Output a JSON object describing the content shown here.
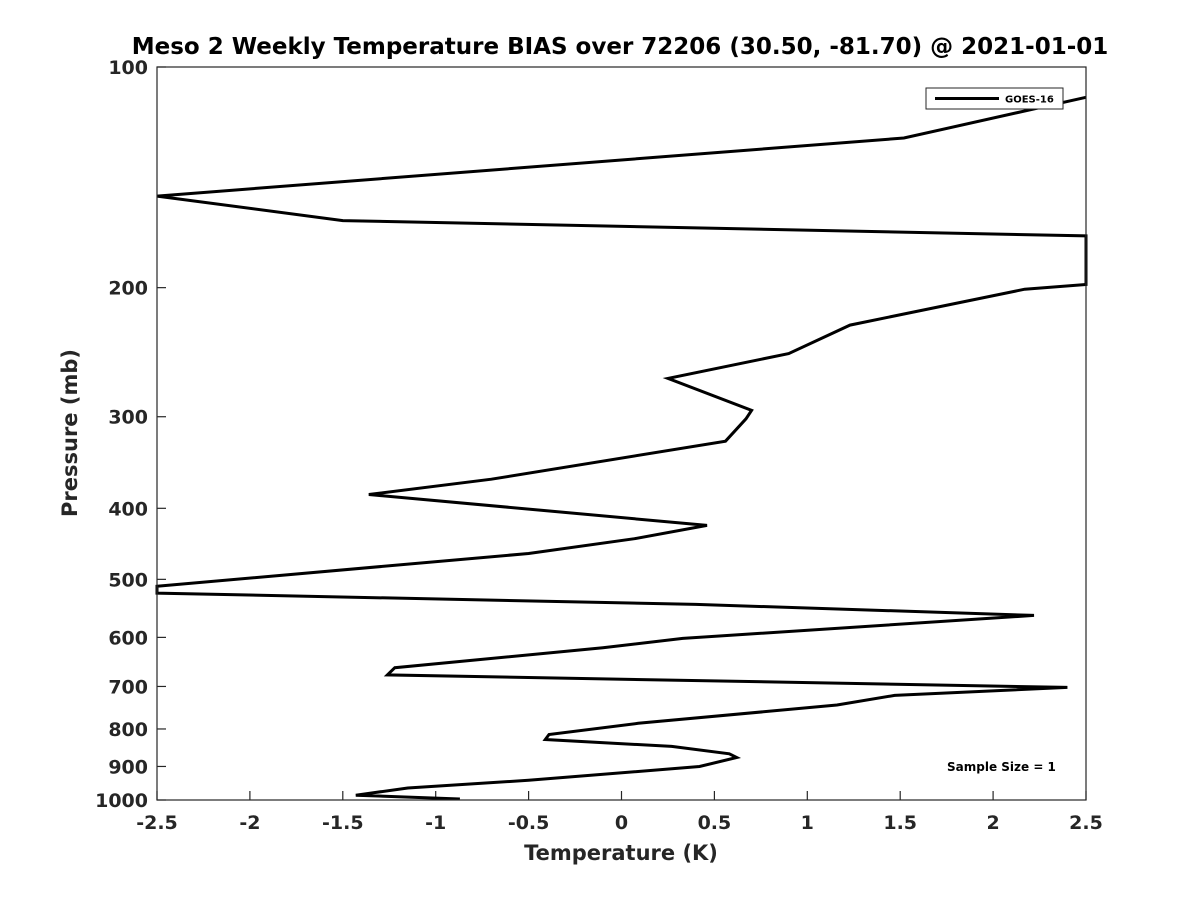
{
  "chart_data": {
    "type": "line",
    "title": "Meso 2 Weekly Temperature BIAS over 72206 (30.50, -81.70) @ 2021-01-01",
    "xlabel": "Temperature (K)",
    "ylabel": "Pressure (mb)",
    "xlim": [
      -2.5,
      2.5
    ],
    "ylim": [
      1000,
      100
    ],
    "yscale": "log",
    "y_reversed": true,
    "x_ticks": [
      -2.5,
      -2,
      -1.5,
      -1,
      -0.5,
      0,
      0.5,
      1,
      1.5,
      2,
      2.5
    ],
    "x_tick_labels": [
      "-2.5",
      "-2",
      "-1.5",
      "-1",
      "-0.5",
      "0",
      "0.5",
      "1",
      "1.5",
      "2",
      "2.5"
    ],
    "y_ticks": [
      100,
      200,
      300,
      400,
      500,
      600,
      700,
      800,
      900,
      1000
    ],
    "y_tick_labels": [
      "100",
      "200",
      "300",
      "400",
      "500",
      "600",
      "700",
      "800",
      "900",
      "1000"
    ],
    "grid": false,
    "legend_position": "top-right",
    "series": [
      {
        "name": "GOES-16",
        "color": "#000000",
        "x": [
          2.5,
          1.52,
          -2.5,
          -1.5,
          2.5,
          2.5,
          2.17,
          1.23,
          0.9,
          0.25,
          0.7,
          0.67,
          0.56,
          -0.7,
          -1.36,
          0.46,
          0.07,
          -0.5,
          -2.5,
          -2.5,
          0.4,
          2.22,
          0.33,
          -0.1,
          -1.22,
          -1.26,
          2.4,
          1.47,
          1.16,
          0.09,
          -0.39,
          -0.41,
          0.27,
          0.58,
          0.62,
          0.42,
          -0.5,
          -1.15,
          -1.43,
          -0.87
        ],
        "y": [
          110,
          125,
          150,
          162,
          170,
          198,
          201,
          225,
          246,
          266,
          294,
          302,
          324,
          365,
          383,
          422,
          440,
          461,
          511,
          522,
          541,
          560,
          602,
          620,
          660,
          675,
          702,
          720,
          742,
          786,
          814,
          827,
          845,
          865,
          875,
          900,
          940,
          963,
          985,
          997
        ]
      }
    ],
    "annotations": [
      "Sample Size = 1"
    ]
  }
}
